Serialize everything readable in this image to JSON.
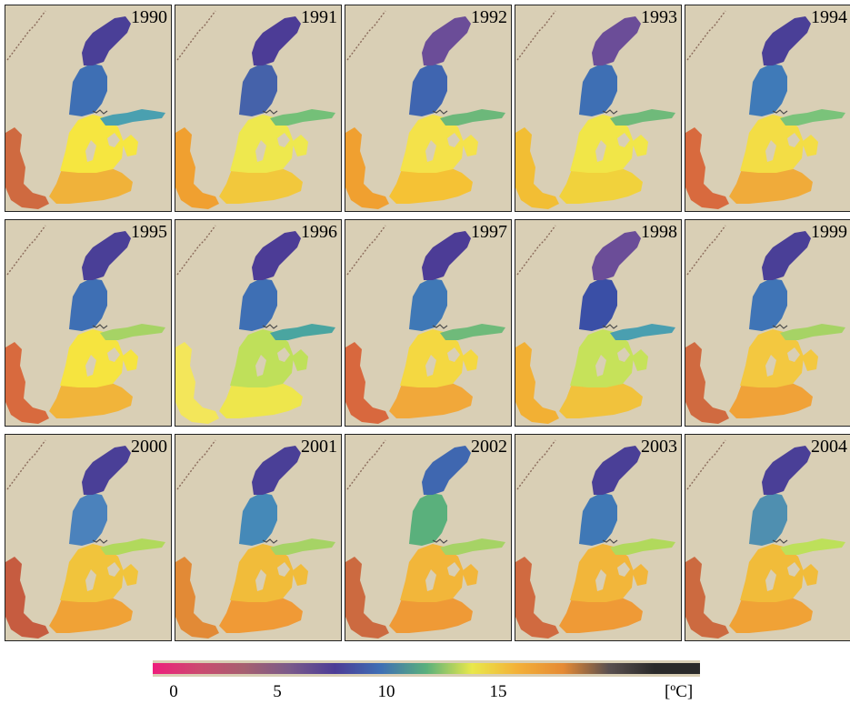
{
  "panels": [
    {
      "year": "1990",
      "north": "#4a3f97",
      "bothnian_sea": "#3e6fb4",
      "central": "#f6e640",
      "south": "#f0b23a",
      "gulf_finland": "#4aa0b0",
      "west_coast": "#cf6a40"
    },
    {
      "year": "1991",
      "north": "#4c3c96",
      "bothnian_sea": "#4562aa",
      "central": "#eee84e",
      "south": "#f2c83c",
      "gulf_finland": "#74c078",
      "west_coast": "#f0a030"
    },
    {
      "year": "1992",
      "north": "#6b4d98",
      "bothnian_sea": "#3f65b0",
      "central": "#f4e24a",
      "south": "#f5c235",
      "gulf_finland": "#6cb87a",
      "west_coast": "#f0a030"
    },
    {
      "year": "1993",
      "north": "#6b4d98",
      "bothnian_sea": "#3e6fb4",
      "central": "#f1e648",
      "south": "#f1d23c",
      "gulf_finland": "#6fba7a",
      "west_coast": "#f2be34"
    },
    {
      "year": "1994",
      "north": "#4a3f97",
      "bothnian_sea": "#3f7ab8",
      "central": "#f3dd45",
      "south": "#f0ab3a",
      "gulf_finland": "#7ac37a",
      "west_coast": "#d86a3e"
    },
    {
      "year": "1995",
      "north": "#4a3f97",
      "bothnian_sea": "#3e6fb4",
      "central": "#f6e43f",
      "south": "#f1b43a",
      "gulf_finland": "#a6d365",
      "west_coast": "#d86a3e"
    },
    {
      "year": "1996",
      "north": "#4c3c96",
      "bothnian_sea": "#3e6fb4",
      "central": "#bfe05a",
      "south": "#eee64c",
      "gulf_finland": "#4aa5a0",
      "west_coast": "#f3e65a"
    },
    {
      "year": "1997",
      "north": "#4c3c96",
      "bothnian_sea": "#3f78b6",
      "central": "#f4d841",
      "south": "#f1a83a",
      "gulf_finland": "#6fba7a",
      "west_coast": "#d8683e"
    },
    {
      "year": "1998",
      "north": "#6b4d98",
      "bothnian_sea": "#3a4fa6",
      "central": "#c6e25a",
      "south": "#f1c23c",
      "gulf_finland": "#4a9fb0",
      "west_coast": "#f2b034"
    },
    {
      "year": "1999",
      "north": "#4a3f97",
      "bothnian_sea": "#3f74b6",
      "central": "#f3c840",
      "south": "#f0a238",
      "gulf_finland": "#a6d365",
      "west_coast": "#d06a40"
    },
    {
      "year": "2000",
      "north": "#4a3f97",
      "bothnian_sea": "#4b82bc",
      "central": "#f1c43c",
      "south": "#f0a236",
      "gulf_finland": "#b1d95c",
      "west_coast": "#c65c40"
    },
    {
      "year": "2001",
      "north": "#4a3f97",
      "bothnian_sea": "#4589b8",
      "central": "#f1bc3a",
      "south": "#f09a36",
      "gulf_finland": "#a6d365",
      "west_coast": "#e28a36"
    },
    {
      "year": "2002",
      "north": "#3f67b0",
      "bothnian_sea": "#5ab07c",
      "central": "#f2b63a",
      "south": "#ef9a36",
      "gulf_finland": "#a6d365",
      "west_coast": "#cc6a40"
    },
    {
      "year": "2003",
      "north": "#4a3f97",
      "bothnian_sea": "#3f78b6",
      "central": "#f2b63a",
      "south": "#ef9a36",
      "gulf_finland": "#b1d95c",
      "west_coast": "#d06a40"
    },
    {
      "year": "2004",
      "north": "#4a3f97",
      "bothnian_sea": "#4f8fb0",
      "central": "#f1bc3a",
      "south": "#f0a236",
      "gulf_finland": "#bde05a",
      "west_coast": "#cc6a40"
    }
  ],
  "legend": {
    "ticks": [
      "0",
      "5",
      "10",
      "15"
    ],
    "unit": "[ºC]",
    "colors": [
      "#ee1e7c",
      "#cc4a70",
      "#a66070",
      "#7a5a8a",
      "#4c3c96",
      "#3f6fb4",
      "#5ab07c",
      "#e9e84a",
      "#f3b038",
      "#e58a34",
      "#5a5050",
      "#2a2a2a",
      "#2a2a2a"
    ]
  },
  "background_color": "#d9cfb5"
}
